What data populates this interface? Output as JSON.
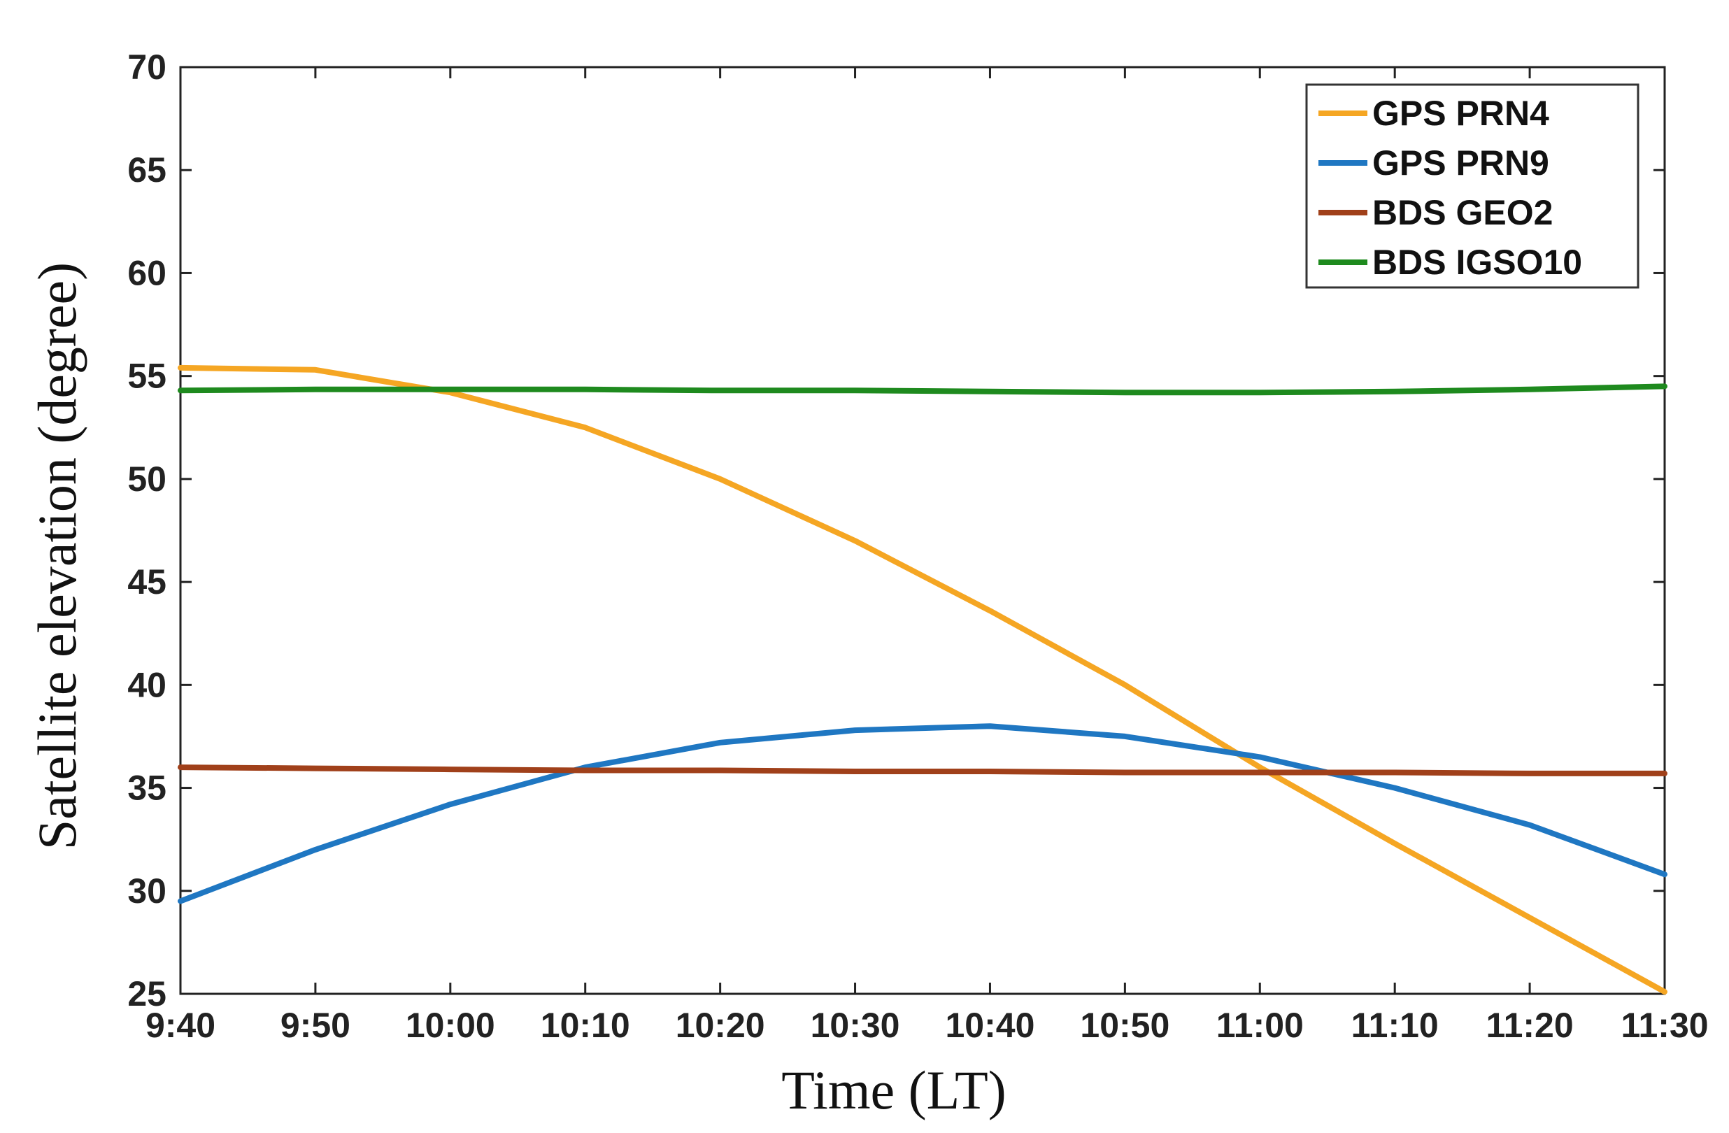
{
  "chart_data": {
    "type": "line",
    "title": "",
    "xlabel": "Time (LT)",
    "ylabel": "Satellite elevation  (degree)",
    "x_ticks": [
      "9:40",
      "9:50",
      "10:00",
      "10:10",
      "10:20",
      "10:30",
      "10:40",
      "10:50",
      "11:00",
      "11:10",
      "11:20",
      "11:30"
    ],
    "y_ticks": [
      25,
      30,
      35,
      40,
      45,
      50,
      55,
      60,
      65,
      70
    ],
    "ylim": [
      25,
      70
    ],
    "grid": false,
    "legend_position": "top-right",
    "series": [
      {
        "name": "GPS PRN4",
        "color": "#F5A623",
        "values": [
          55.4,
          55.3,
          54.2,
          52.5,
          50.0,
          47.0,
          43.6,
          40.0,
          36.0,
          32.3,
          28.7,
          25.1
        ]
      },
      {
        "name": "GPS PRN9",
        "color": "#1F77C2",
        "values": [
          29.5,
          32.0,
          34.2,
          36.0,
          37.2,
          37.8,
          38.0,
          37.5,
          36.5,
          35.0,
          33.2,
          30.8
        ]
      },
      {
        "name": "BDS GEO2",
        "color": "#A0401A",
        "values": [
          36.0,
          35.95,
          35.9,
          35.85,
          35.85,
          35.8,
          35.8,
          35.75,
          35.75,
          35.75,
          35.7,
          35.7
        ]
      },
      {
        "name": "BDS IGSO10",
        "color": "#1E8A1E",
        "values": [
          54.3,
          54.35,
          54.35,
          54.35,
          54.3,
          54.3,
          54.25,
          54.2,
          54.2,
          54.25,
          54.35,
          54.5
        ]
      }
    ]
  }
}
